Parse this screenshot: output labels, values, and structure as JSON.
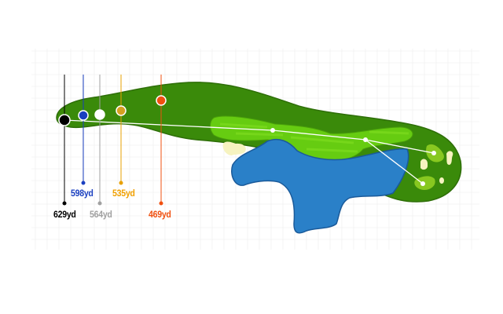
{
  "hole": {
    "tees": [
      {
        "name": "black",
        "yardage": "629yd",
        "color": "#000000"
      },
      {
        "name": "blue",
        "yardage": "598yd",
        "color": "#1a3fc0"
      },
      {
        "name": "white",
        "yardage": "564yd",
        "color": "#a0a0a0"
      },
      {
        "name": "gold",
        "yardage": "535yd",
        "color": "#e8a000"
      },
      {
        "name": "red",
        "yardage": "469yd",
        "color": "#f05010"
      }
    ],
    "colors": {
      "rough": "#3a8a0a",
      "fairway": "#66cc11",
      "water": "#2a80c8",
      "sand": "#f6f3c0",
      "green": "#88c820"
    }
  }
}
